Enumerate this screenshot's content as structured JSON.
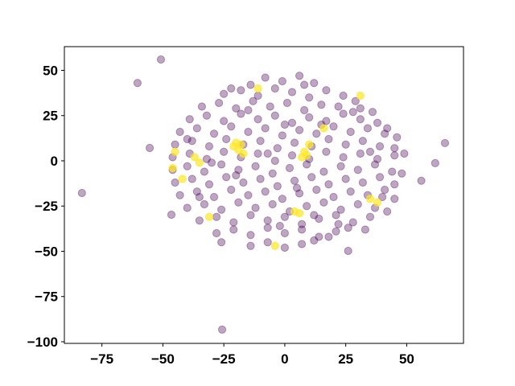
{
  "chart_data": {
    "type": "scatter",
    "title": "",
    "xlabel": "",
    "ylabel": "",
    "xlim": [
      -90.4,
      73.3
    ],
    "ylim": [
      -100.9,
      63.1
    ],
    "grid": false,
    "xticks": [
      -75,
      -50,
      -25,
      0,
      25,
      50
    ],
    "yticks": [
      50,
      25,
      0,
      -25,
      -50,
      -75,
      -100
    ],
    "xtick_labels": [
      "−75",
      "−50",
      "−25",
      "0",
      "25",
      "50"
    ],
    "ytick_labels": [
      "50",
      "25",
      "0",
      "−25",
      "−50",
      "−75",
      "−100"
    ],
    "colormap": "viridis",
    "colors": {
      "0": "#440154",
      "1": "#fde725"
    },
    "alpha": 0.35,
    "points_note_columns": [
      "x",
      "y",
      "class"
    ],
    "points": [
      [
        -8,
        46,
        0
      ],
      [
        -1,
        44,
        0
      ],
      [
        6,
        47,
        0
      ],
      [
        12,
        43,
        0
      ],
      [
        -14,
        42,
        0
      ],
      [
        -25,
        37,
        0
      ],
      [
        -18,
        39,
        0
      ],
      [
        -11,
        36,
        0
      ],
      [
        -4,
        40,
        0
      ],
      [
        3,
        38,
        0
      ],
      [
        10,
        35,
        0
      ],
      [
        17,
        39,
        0
      ],
      [
        24,
        36,
        0
      ],
      [
        29,
        33,
        0
      ],
      [
        -34,
        30,
        0
      ],
      [
        -27,
        32,
        0
      ],
      [
        -20,
        29,
        0
      ],
      [
        -13,
        33,
        0
      ],
      [
        -6,
        30,
        0
      ],
      [
        1,
        32,
        0
      ],
      [
        8,
        28,
        0
      ],
      [
        15,
        31,
        0
      ],
      [
        22,
        30,
        0
      ],
      [
        31,
        29,
        0
      ],
      [
        36,
        27,
        0
      ],
      [
        -39,
        23,
        0
      ],
      [
        -32,
        25,
        0
      ],
      [
        -25,
        22,
        0
      ],
      [
        -18,
        26,
        0
      ],
      [
        -11,
        23,
        0
      ],
      [
        -4,
        25,
        0
      ],
      [
        3,
        21,
        0
      ],
      [
        10,
        24,
        0
      ],
      [
        17,
        22,
        0
      ],
      [
        24,
        26,
        0
      ],
      [
        31,
        23,
        0
      ],
      [
        38,
        21,
        0
      ],
      [
        42,
        18,
        0
      ],
      [
        -43,
        16,
        0
      ],
      [
        -36,
        18,
        0
      ],
      [
        -29,
        15,
        0
      ],
      [
        -22,
        19,
        0
      ],
      [
        -15,
        16,
        0
      ],
      [
        -8,
        18,
        0
      ],
      [
        -1,
        14,
        0
      ],
      [
        6,
        17,
        0
      ],
      [
        13,
        15,
        0
      ],
      [
        20,
        19,
        0
      ],
      [
        27,
        16,
        0
      ],
      [
        34,
        18,
        0
      ],
      [
        41,
        15,
        0
      ],
      [
        46,
        13,
        0
      ],
      [
        -45,
        9,
        0
      ],
      [
        -38,
        11,
        0
      ],
      [
        -31,
        8,
        0
      ],
      [
        -24,
        12,
        0
      ],
      [
        -17,
        9,
        0
      ],
      [
        -10,
        11,
        0
      ],
      [
        -3,
        7,
        0
      ],
      [
        4,
        10,
        0
      ],
      [
        11,
        8,
        0
      ],
      [
        18,
        12,
        0
      ],
      [
        25,
        9,
        0
      ],
      [
        32,
        11,
        0
      ],
      [
        39,
        8,
        0
      ],
      [
        45,
        7,
        0
      ],
      [
        49,
        4,
        0
      ],
      [
        -46,
        2,
        0
      ],
      [
        -39,
        4,
        0
      ],
      [
        -32,
        1,
        0
      ],
      [
        -25,
        5,
        0
      ],
      [
        -18,
        2,
        0
      ],
      [
        -11,
        4,
        0
      ],
      [
        -4,
        0,
        0
      ],
      [
        3,
        3,
        0
      ],
      [
        10,
        1,
        0
      ],
      [
        17,
        5,
        0
      ],
      [
        24,
        2,
        0
      ],
      [
        31,
        4,
        0
      ],
      [
        38,
        1,
        0
      ],
      [
        45,
        3,
        0
      ],
      [
        -46,
        -5,
        0
      ],
      [
        -40,
        -3,
        0
      ],
      [
        -33,
        -6,
        0
      ],
      [
        -26,
        -2,
        0
      ],
      [
        -19,
        -5,
        0
      ],
      [
        -12,
        -3,
        0
      ],
      [
        -5,
        -7,
        0
      ],
      [
        2,
        -4,
        0
      ],
      [
        9,
        -2,
        0
      ],
      [
        16,
        -6,
        0
      ],
      [
        23,
        -3,
        0
      ],
      [
        30,
        -5,
        0
      ],
      [
        37,
        -2,
        0
      ],
      [
        44,
        -6,
        0
      ],
      [
        48,
        -7,
        0
      ],
      [
        -45,
        -12,
        0
      ],
      [
        -38,
        -10,
        0
      ],
      [
        -31,
        -13,
        0
      ],
      [
        -24,
        -9,
        0
      ],
      [
        -17,
        -12,
        0
      ],
      [
        -10,
        -10,
        0
      ],
      [
        -3,
        -14,
        0
      ],
      [
        4,
        -11,
        0
      ],
      [
        11,
        -9,
        0
      ],
      [
        18,
        -13,
        0
      ],
      [
        25,
        -10,
        0
      ],
      [
        32,
        -12,
        0
      ],
      [
        39,
        -9,
        0
      ],
      [
        45,
        -13,
        0
      ],
      [
        -43,
        -19,
        0
      ],
      [
        -36,
        -17,
        0
      ],
      [
        -29,
        -20,
        0
      ],
      [
        -22,
        -16,
        0
      ],
      [
        -15,
        -19,
        0
      ],
      [
        -8,
        -17,
        0
      ],
      [
        -1,
        -21,
        0
      ],
      [
        6,
        -18,
        0
      ],
      [
        13,
        -16,
        0
      ],
      [
        20,
        -20,
        0
      ],
      [
        27,
        -17,
        0
      ],
      [
        34,
        -19,
        0
      ],
      [
        41,
        -16,
        0
      ],
      [
        45,
        -21,
        0
      ],
      [
        -40,
        -26,
        0
      ],
      [
        -33,
        -24,
        0
      ],
      [
        -26,
        -27,
        0
      ],
      [
        -19,
        -23,
        0
      ],
      [
        -12,
        -26,
        0
      ],
      [
        -5,
        -24,
        0
      ],
      [
        2,
        -28,
        0
      ],
      [
        9,
        -25,
        0
      ],
      [
        16,
        -23,
        0
      ],
      [
        23,
        -27,
        0
      ],
      [
        30,
        -24,
        0
      ],
      [
        37,
        -26,
        0
      ],
      [
        42,
        -28,
        0
      ],
      [
        -35,
        -33,
        0
      ],
      [
        -28,
        -31,
        0
      ],
      [
        -21,
        -34,
        0
      ],
      [
        -14,
        -30,
        0
      ],
      [
        -7,
        -33,
        0
      ],
      [
        0,
        -31,
        0
      ],
      [
        7,
        -35,
        0
      ],
      [
        14,
        -32,
        0
      ],
      [
        21,
        -30,
        0
      ],
      [
        28,
        -34,
        0
      ],
      [
        35,
        -31,
        0
      ],
      [
        -28,
        -40,
        0
      ],
      [
        -21,
        -38,
        0
      ],
      [
        -14,
        -41,
        0
      ],
      [
        -7,
        -37,
        0
      ],
      [
        0,
        -40,
        0
      ],
      [
        7,
        -38,
        0
      ],
      [
        14,
        -42,
        0
      ],
      [
        21,
        -39,
        0
      ],
      [
        26,
        -37,
        0
      ],
      [
        -14,
        -47,
        0
      ],
      [
        -7,
        -45,
        0
      ],
      [
        0,
        -48,
        0
      ],
      [
        7,
        -46,
        0
      ],
      [
        12,
        -44,
        0
      ],
      [
        -30,
        -1,
        0
      ],
      [
        -20,
        -8,
        0
      ],
      [
        -7,
        4,
        0
      ],
      [
        5,
        -15,
        0
      ],
      [
        15,
        20,
        0
      ],
      [
        -15,
        28,
        0
      ],
      [
        22,
        -35,
        0
      ],
      [
        -35,
        -20,
        0
      ],
      [
        35,
        5,
        0
      ],
      [
        0,
        20,
        0
      ],
      [
        -22,
        40,
        0
      ],
      [
        12,
        -30,
        0
      ],
      [
        28,
        27,
        0
      ],
      [
        -40,
        12,
        0
      ],
      [
        40,
        -20,
        0
      ],
      [
        -2,
        -36,
        0
      ],
      [
        8,
        42,
        0
      ],
      [
        -26,
        -45,
        0
      ],
      [
        18,
        -42,
        0
      ],
      [
        33,
        -38,
        0
      ],
      [
        -83.2,
        -17.8,
        0
      ],
      [
        -50.8,
        56,
        0
      ],
      [
        -60.4,
        43,
        0
      ],
      [
        -55.4,
        7.1,
        0
      ],
      [
        -25.7,
        -93.3,
        0
      ],
      [
        65.7,
        9.8,
        0
      ],
      [
        61.7,
        -1.3,
        0
      ],
      [
        56,
        -11,
        0
      ],
      [
        -46.5,
        -29.8,
        0
      ],
      [
        26,
        -49.8,
        0
      ],
      [
        -20,
        10,
        1
      ],
      [
        -19,
        6,
        1
      ],
      [
        -18,
        9,
        1
      ],
      [
        -21,
        8,
        1
      ],
      [
        -17,
        4,
        1
      ],
      [
        9,
        3,
        1
      ],
      [
        7,
        2,
        1
      ],
      [
        10,
        9,
        1
      ],
      [
        8,
        5,
        1
      ],
      [
        4,
        -28,
        1
      ],
      [
        6,
        -29,
        1
      ],
      [
        38,
        -23,
        1
      ],
      [
        -45,
        5,
        1
      ],
      [
        -46,
        -4,
        1
      ],
      [
        -42,
        -10,
        1
      ],
      [
        -31,
        -31,
        1
      ],
      [
        31,
        36,
        1
      ],
      [
        -4,
        -47,
        1
      ],
      [
        -11,
        40,
        1
      ],
      [
        -37,
        2,
        1
      ],
      [
        -35,
        -1,
        1
      ],
      [
        35,
        -21,
        1
      ],
      [
        16,
        18,
        1
      ]
    ]
  }
}
